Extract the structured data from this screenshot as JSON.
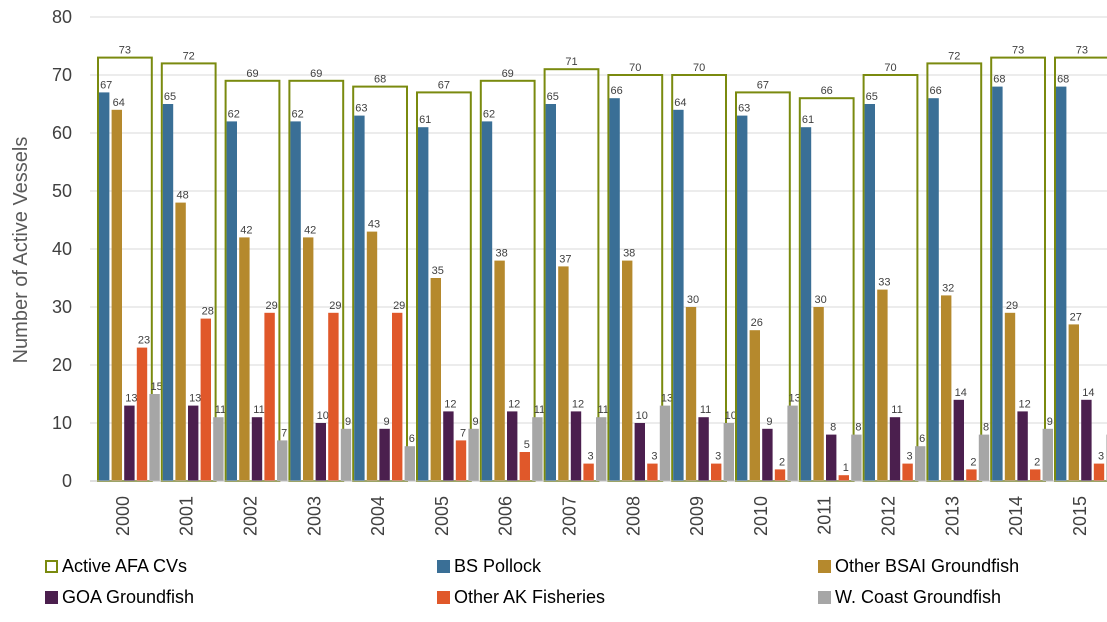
{
  "chart_data": {
    "type": "bar",
    "title": "",
    "xlabel": "",
    "ylabel": "Number of Active Vessels",
    "ylim": [
      0,
      80
    ],
    "yticks": [
      0,
      10,
      20,
      30,
      40,
      50,
      60,
      70,
      80
    ],
    "grid": true,
    "legend_position": "bottom",
    "categories": [
      "2000",
      "2001",
      "2002",
      "2003",
      "2004",
      "2005",
      "2006",
      "2007",
      "2008",
      "2009",
      "2010",
      "2011",
      "2012",
      "2013",
      "2014",
      "2015"
    ],
    "series": [
      {
        "name": "Active AFA CVs",
        "color": "#7a8a0f",
        "style": "outline",
        "values": [
          73,
          72,
          69,
          69,
          68,
          67,
          69,
          71,
          70,
          70,
          67,
          66,
          70,
          72,
          73,
          73
        ]
      },
      {
        "name": "BS Pollock",
        "color": "#3a6f96",
        "values": [
          67,
          65,
          62,
          62,
          63,
          61,
          62,
          65,
          66,
          64,
          63,
          61,
          65,
          66,
          68,
          68
        ]
      },
      {
        "name": "Other BSAI Groundfish",
        "color": "#b5892d",
        "values": [
          64,
          48,
          42,
          42,
          43,
          35,
          38,
          37,
          38,
          30,
          26,
          30,
          33,
          32,
          29,
          27
        ]
      },
      {
        "name": "GOA Groundfish",
        "color": "#4b1f4e",
        "values": [
          13,
          13,
          11,
          10,
          9,
          12,
          12,
          12,
          10,
          11,
          9,
          8,
          11,
          14,
          12,
          14
        ]
      },
      {
        "name": "Other AK Fisheries",
        "color": "#e0582a",
        "values": [
          23,
          28,
          29,
          29,
          29,
          7,
          5,
          3,
          3,
          3,
          2,
          1,
          3,
          2,
          2,
          3
        ]
      },
      {
        "name": "W. Coast Groundfish",
        "color": "#a6a6a6",
        "values": [
          15,
          11,
          7,
          9,
          6,
          9,
          11,
          11,
          13,
          10,
          13,
          8,
          6,
          8,
          9,
          8
        ]
      }
    ]
  }
}
